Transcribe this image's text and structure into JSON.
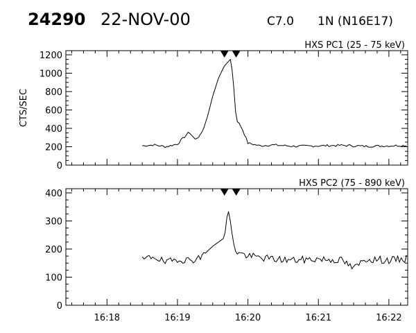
{
  "header": {
    "event_id": "24290",
    "date": "22-NOV-00",
    "flare_class": "C7.0",
    "location": "1N (N16E17)"
  },
  "chart_data": [
    {
      "type": "line",
      "title": "HXS PC1 (25 - 75 keV)",
      "ylabel": "CTS/SEC",
      "xlim": [
        "16:17:25",
        "16:22:16"
      ],
      "ylim": [
        0,
        1200
      ],
      "y_ticks": [
        0,
        200,
        400,
        600,
        800,
        1000,
        1200
      ],
      "x_ticks": [
        "16:18",
        "16:19",
        "16:20",
        "16:21",
        "16:22"
      ],
      "grid": false,
      "markers": [
        "16:19:40",
        "16:19:50"
      ],
      "series": [
        {
          "x": [
            "16:18:30",
            "16:18:40",
            "16:18:50",
            "16:19:00",
            "16:19:10",
            "16:19:15",
            "16:19:20",
            "16:19:25",
            "16:19:30",
            "16:19:35",
            "16:19:40",
            "16:19:45",
            "16:19:47",
            "16:19:50",
            "16:19:55",
            "16:20:00",
            "16:20:10",
            "16:20:20",
            "16:20:40",
            "16:21:00",
            "16:21:20",
            "16:21:40",
            "16:22:00",
            "16:22:15"
          ],
          "y": [
            210,
            220,
            200,
            230,
            360,
            280,
            330,
            500,
            750,
            950,
            1080,
            1150,
            1000,
            500,
            400,
            240,
            210,
            220,
            205,
            210,
            215,
            205,
            210,
            215
          ]
        }
      ]
    },
    {
      "type": "line",
      "title": "HXS PC2 (75 - 890 keV)",
      "ylabel": "",
      "xlim": [
        "16:17:25",
        "16:22:16"
      ],
      "ylim": [
        0,
        400
      ],
      "y_ticks": [
        0,
        100,
        200,
        300,
        400
      ],
      "x_ticks": [
        "16:18",
        "16:19",
        "16:20",
        "16:21",
        "16:22"
      ],
      "grid": false,
      "markers": [
        "16:19:40",
        "16:19:50"
      ],
      "series": [
        {
          "x": [
            "16:18:30",
            "16:18:40",
            "16:18:50",
            "16:19:00",
            "16:19:10",
            "16:19:20",
            "16:19:30",
            "16:19:40",
            "16:19:43",
            "16:19:45",
            "16:19:47",
            "16:19:50",
            "16:20:00",
            "16:20:20",
            "16:20:40",
            "16:21:00",
            "16:21:20",
            "16:21:30",
            "16:21:40",
            "16:22:00",
            "16:22:15"
          ],
          "y": [
            160,
            175,
            150,
            165,
            160,
            170,
            210,
            240,
            345,
            300,
            240,
            190,
            175,
            165,
            160,
            165,
            160,
            130,
            165,
            160,
            165
          ]
        }
      ]
    }
  ]
}
